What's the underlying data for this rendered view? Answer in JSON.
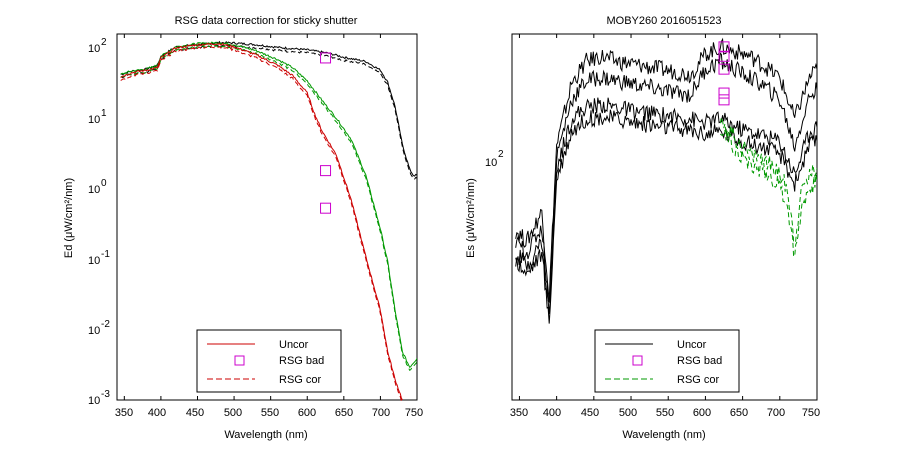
{
  "figure": {
    "panels": [
      {
        "title": "RSG data correction for sticky shutter",
        "xlabel": "Wavelength (nm)",
        "ylabel": "Ed (μW/cm²/nm)",
        "x_ticks": [
          "350",
          "400",
          "450",
          "500",
          "550",
          "600",
          "650",
          "700",
          "750"
        ],
        "y_ticks": [
          {
            "base": "10",
            "exp": "2"
          },
          {
            "base": "10",
            "exp": "1"
          },
          {
            "base": "10",
            "exp": "0"
          },
          {
            "base": "10",
            "exp": "-1"
          },
          {
            "base": "10",
            "exp": "-2"
          },
          {
            "base": "10",
            "exp": "-3"
          }
        ],
        "legend": {
          "items": [
            {
              "label": "Uncor",
              "kind": "line",
              "color": "#cc0000",
              "dash": false
            },
            {
              "label": "RSG bad",
              "kind": "marker",
              "color": "#cc00cc"
            },
            {
              "label": "RSG cor",
              "kind": "line",
              "color": "#cc0000",
              "dash": true
            }
          ]
        }
      },
      {
        "title": "MOBY260  2016051523",
        "xlabel": "Wavelength (nm)",
        "ylabel": "Es (μW/cm²/nm)",
        "x_ticks": [
          "350",
          "400",
          "450",
          "500",
          "550",
          "600",
          "650",
          "700",
          "750"
        ],
        "y_ticks": [
          {
            "base": "10",
            "exp": "2"
          }
        ],
        "legend": {
          "items": [
            {
              "label": "Uncor",
              "kind": "line",
              "color": "#000000",
              "dash": false
            },
            {
              "label": "RSG bad",
              "kind": "marker",
              "color": "#cc00cc"
            },
            {
              "label": "RSG cor",
              "kind": "line",
              "color": "#009900",
              "dash": true
            }
          ]
        }
      }
    ]
  },
  "chart_data": [
    {
      "type": "line",
      "title": "RSG data correction for sticky shutter",
      "xlabel": "Wavelength (nm)",
      "ylabel": "Ed (μW/cm²/nm)",
      "xlim": [
        340,
        750
      ],
      "ylim": [
        0.001,
        200
      ],
      "yscale": "log",
      "grid": false,
      "legend_position": "bottom",
      "series": [
        {
          "name": "Uncor",
          "color": "#000000",
          "x": [
            345,
            360,
            380,
            395,
            400,
            420,
            450,
            480,
            500,
            530,
            560,
            600,
            630,
            650,
            680,
            700,
            710,
            720,
            730,
            740,
            745,
            750
          ],
          "y": [
            52,
            58,
            62,
            70,
            95,
            130,
            140,
            150,
            148,
            140,
            128,
            118,
            105,
            92,
            80,
            60,
            40,
            18,
            5,
            2.2,
            1.8,
            1.8
          ]
        },
        {
          "name": "Uncor",
          "color": "#009900",
          "x": [
            345,
            360,
            380,
            395,
            400,
            420,
            450,
            480,
            500,
            530,
            560,
            580,
            600,
            620,
            640,
            660,
            680,
            700,
            710,
            720,
            730,
            740,
            750
          ],
          "y": [
            52,
            58,
            62,
            70,
            95,
            130,
            145,
            150,
            140,
            115,
            85,
            65,
            42,
            22,
            12,
            6,
            1.8,
            0.3,
            0.1,
            0.02,
            0.005,
            0.003,
            0.004
          ]
        },
        {
          "name": "Uncor",
          "color": "#cc0000",
          "x": [
            345,
            360,
            380,
            395,
            400,
            420,
            450,
            480,
            500,
            530,
            560,
            580,
            600,
            610,
            620,
            640,
            660,
            680,
            700,
            710,
            720,
            730
          ],
          "y": [
            48,
            55,
            60,
            65,
            90,
            125,
            140,
            145,
            130,
            100,
            70,
            50,
            28,
            14,
            8,
            3.5,
            0.8,
            0.12,
            0.02,
            0.005,
            0.002,
            0.001
          ]
        },
        {
          "name": "RSG bad",
          "type": "scatter",
          "color": "#cc00cc",
          "x": [
            625,
            625,
            625
          ],
          "y": [
            90,
            2.1,
            0.6
          ]
        }
      ]
    },
    {
      "type": "line",
      "title": "MOBY260  2016051523",
      "xlabel": "Wavelength (nm)",
      "ylabel": "Es (μW/cm²/nm)",
      "xlim": [
        340,
        750
      ],
      "ylim": [
        15,
        300
      ],
      "yscale": "log",
      "grid": false,
      "legend_position": "bottom",
      "series": [
        {
          "name": "Uncor",
          "color": "#000000",
          "x": [
            345,
            360,
            380,
            390,
            400,
            420,
            440,
            460,
            480,
            500,
            520,
            540,
            560,
            580,
            600,
            620,
            640,
            660,
            680,
            700,
            720,
            740,
            750
          ],
          "y": [
            60,
            55,
            70,
            35,
            120,
            200,
            240,
            250,
            240,
            235,
            230,
            225,
            220,
            215,
            255,
            270,
            260,
            250,
            230,
            210,
            150,
            210,
            225
          ]
        },
        {
          "name": "Uncor",
          "color": "#000000",
          "x": [
            345,
            360,
            380,
            390,
            400,
            420,
            440,
            460,
            480,
            500,
            520,
            540,
            560,
            580,
            600,
            620,
            640,
            660,
            680,
            700,
            720,
            740,
            750
          ],
          "y": [
            55,
            50,
            62,
            32,
            110,
            175,
            205,
            210,
            205,
            200,
            195,
            190,
            185,
            182,
            225,
            240,
            225,
            210,
            195,
            175,
            120,
            180,
            190
          ]
        },
        {
          "name": "Uncor",
          "color": "#000000",
          "x": [
            345,
            360,
            380,
            390,
            400,
            420,
            440,
            460,
            480,
            500,
            520,
            540,
            560,
            580,
            600,
            620,
            640,
            660,
            680,
            700,
            720,
            740,
            750
          ],
          "y": [
            50,
            45,
            55,
            30,
            100,
            150,
            165,
            168,
            165,
            160,
            157,
            155,
            152,
            150,
            145,
            150,
            140,
            135,
            130,
            125,
            95,
            135,
            140
          ]
        },
        {
          "name": "Uncor",
          "color": "#000000",
          "x": [
            345,
            360,
            380,
            390,
            400,
            420,
            440,
            460,
            480,
            500,
            520,
            540,
            560,
            580,
            600,
            620,
            640,
            660,
            680,
            700,
            720,
            740,
            750
          ],
          "y": [
            47,
            42,
            50,
            28,
            92,
            135,
            150,
            152,
            150,
            146,
            143,
            140,
            138,
            136,
            132,
            135,
            128,
            122,
            118,
            112,
            88,
            120,
            125
          ]
        },
        {
          "name": "RSG cor",
          "color": "#009900",
          "x": [
            620,
            640,
            660,
            680,
            700,
            710,
            720,
            730,
            740,
            750
          ],
          "y": [
            150,
            128,
            112,
            108,
            95,
            85,
            55,
            85,
            95,
            100
          ]
        },
        {
          "name": "RSG cor",
          "color": "#009900",
          "x": [
            620,
            640,
            660,
            680,
            700,
            710,
            720,
            730,
            740,
            750
          ],
          "y": [
            140,
            118,
            102,
            98,
            86,
            75,
            48,
            75,
            85,
            90
          ]
        },
        {
          "name": "RSG bad",
          "type": "scatter",
          "color": "#cc00cc",
          "x": [
            625,
            625,
            625,
            625,
            625
          ],
          "y": [
            270,
            250,
            225,
            185,
            175
          ]
        }
      ]
    }
  ]
}
